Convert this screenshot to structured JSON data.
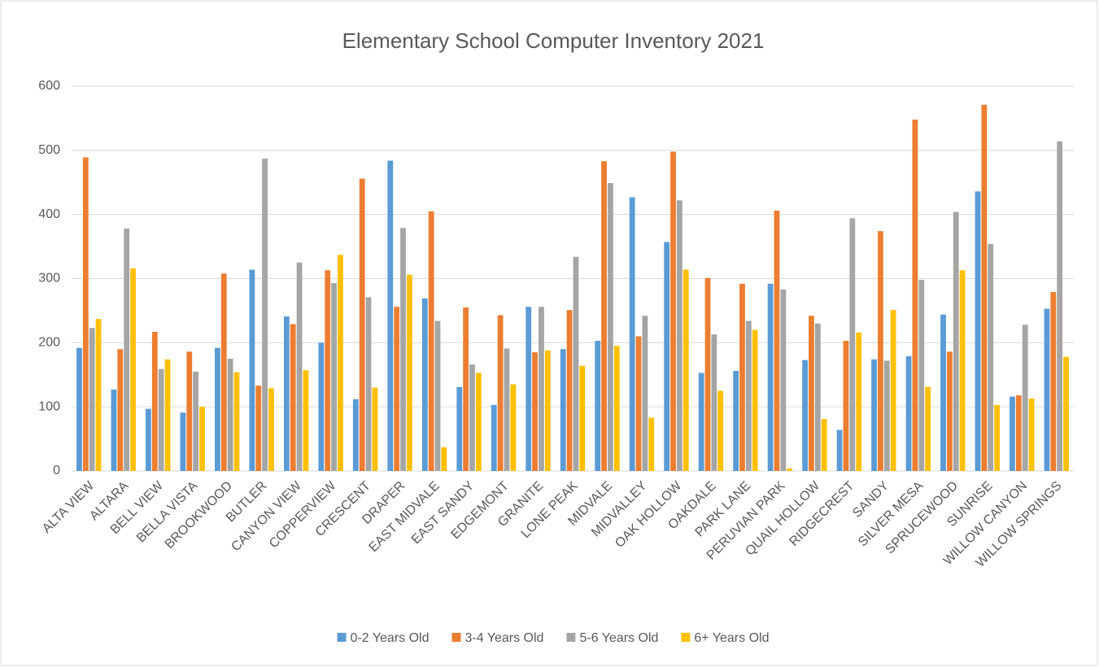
{
  "chart_data": {
    "type": "bar",
    "title": "Elementary School Computer Inventory 2021",
    "categories": [
      "ALTA VIEW",
      "ALTARA",
      "BELL VIEW",
      "BELLA VISTA",
      "BROOKWOOD",
      "BUTLER",
      "CANYON VIEW",
      "COPPERVIEW",
      "CRESCENT",
      "DRAPER",
      "EAST MIDVALE",
      "EAST SANDY",
      "EDGEMONT",
      "GRANITE",
      "LONE PEAK",
      "MIDVALE",
      "MIDVALLEY",
      "OAK HOLLOW",
      "OAKDALE",
      "PARK LANE",
      "PERUVIAN PARK",
      "QUAIL HOLLOW",
      "RIDGECREST",
      "SANDY",
      "SILVER MESA",
      "SPRUCEWOOD",
      "SUNRISE",
      "WILLOW CANYON",
      "WILLOW SPRINGS"
    ],
    "series": [
      {
        "name": "0-2 Years Old",
        "color": "#5b9bd5",
        "values": [
          192,
          127,
          97,
          91,
          192,
          314,
          241,
          200,
          112,
          484,
          269,
          131,
          103,
          256,
          190,
          203,
          427,
          357,
          153,
          156,
          292,
          173,
          64,
          174,
          179,
          244,
          436,
          116,
          253
        ]
      },
      {
        "name": "3-4 Years Old",
        "color": "#ed7d31",
        "values": [
          489,
          190,
          217,
          186,
          308,
          133,
          229,
          313,
          456,
          256,
          405,
          255,
          243,
          185,
          251,
          483,
          210,
          498,
          301,
          292,
          406,
          242,
          203,
          374,
          548,
          186,
          571,
          118,
          279
        ]
      },
      {
        "name": "5-6 Years Old",
        "color": "#a5a5a5",
        "values": [
          223,
          378,
          159,
          155,
          175,
          487,
          325,
          293,
          271,
          379,
          234,
          166,
          191,
          256,
          334,
          449,
          242,
          422,
          213,
          234,
          283,
          230,
          394,
          172,
          298,
          404,
          354,
          228,
          514
        ]
      },
      {
        "name": "6+ Years Old",
        "color": "#ffc000",
        "values": [
          237,
          316,
          174,
          100,
          154,
          129,
          157,
          337,
          130,
          306,
          37,
          153,
          135,
          188,
          164,
          195,
          83,
          314,
          125,
          220,
          4,
          81,
          216,
          251,
          131,
          313,
          103,
          113,
          178
        ]
      }
    ],
    "ylim": [
      0,
      600
    ],
    "yticks": [
      0,
      100,
      200,
      300,
      400,
      500,
      600
    ],
    "grid": true,
    "legend": "bottom"
  }
}
